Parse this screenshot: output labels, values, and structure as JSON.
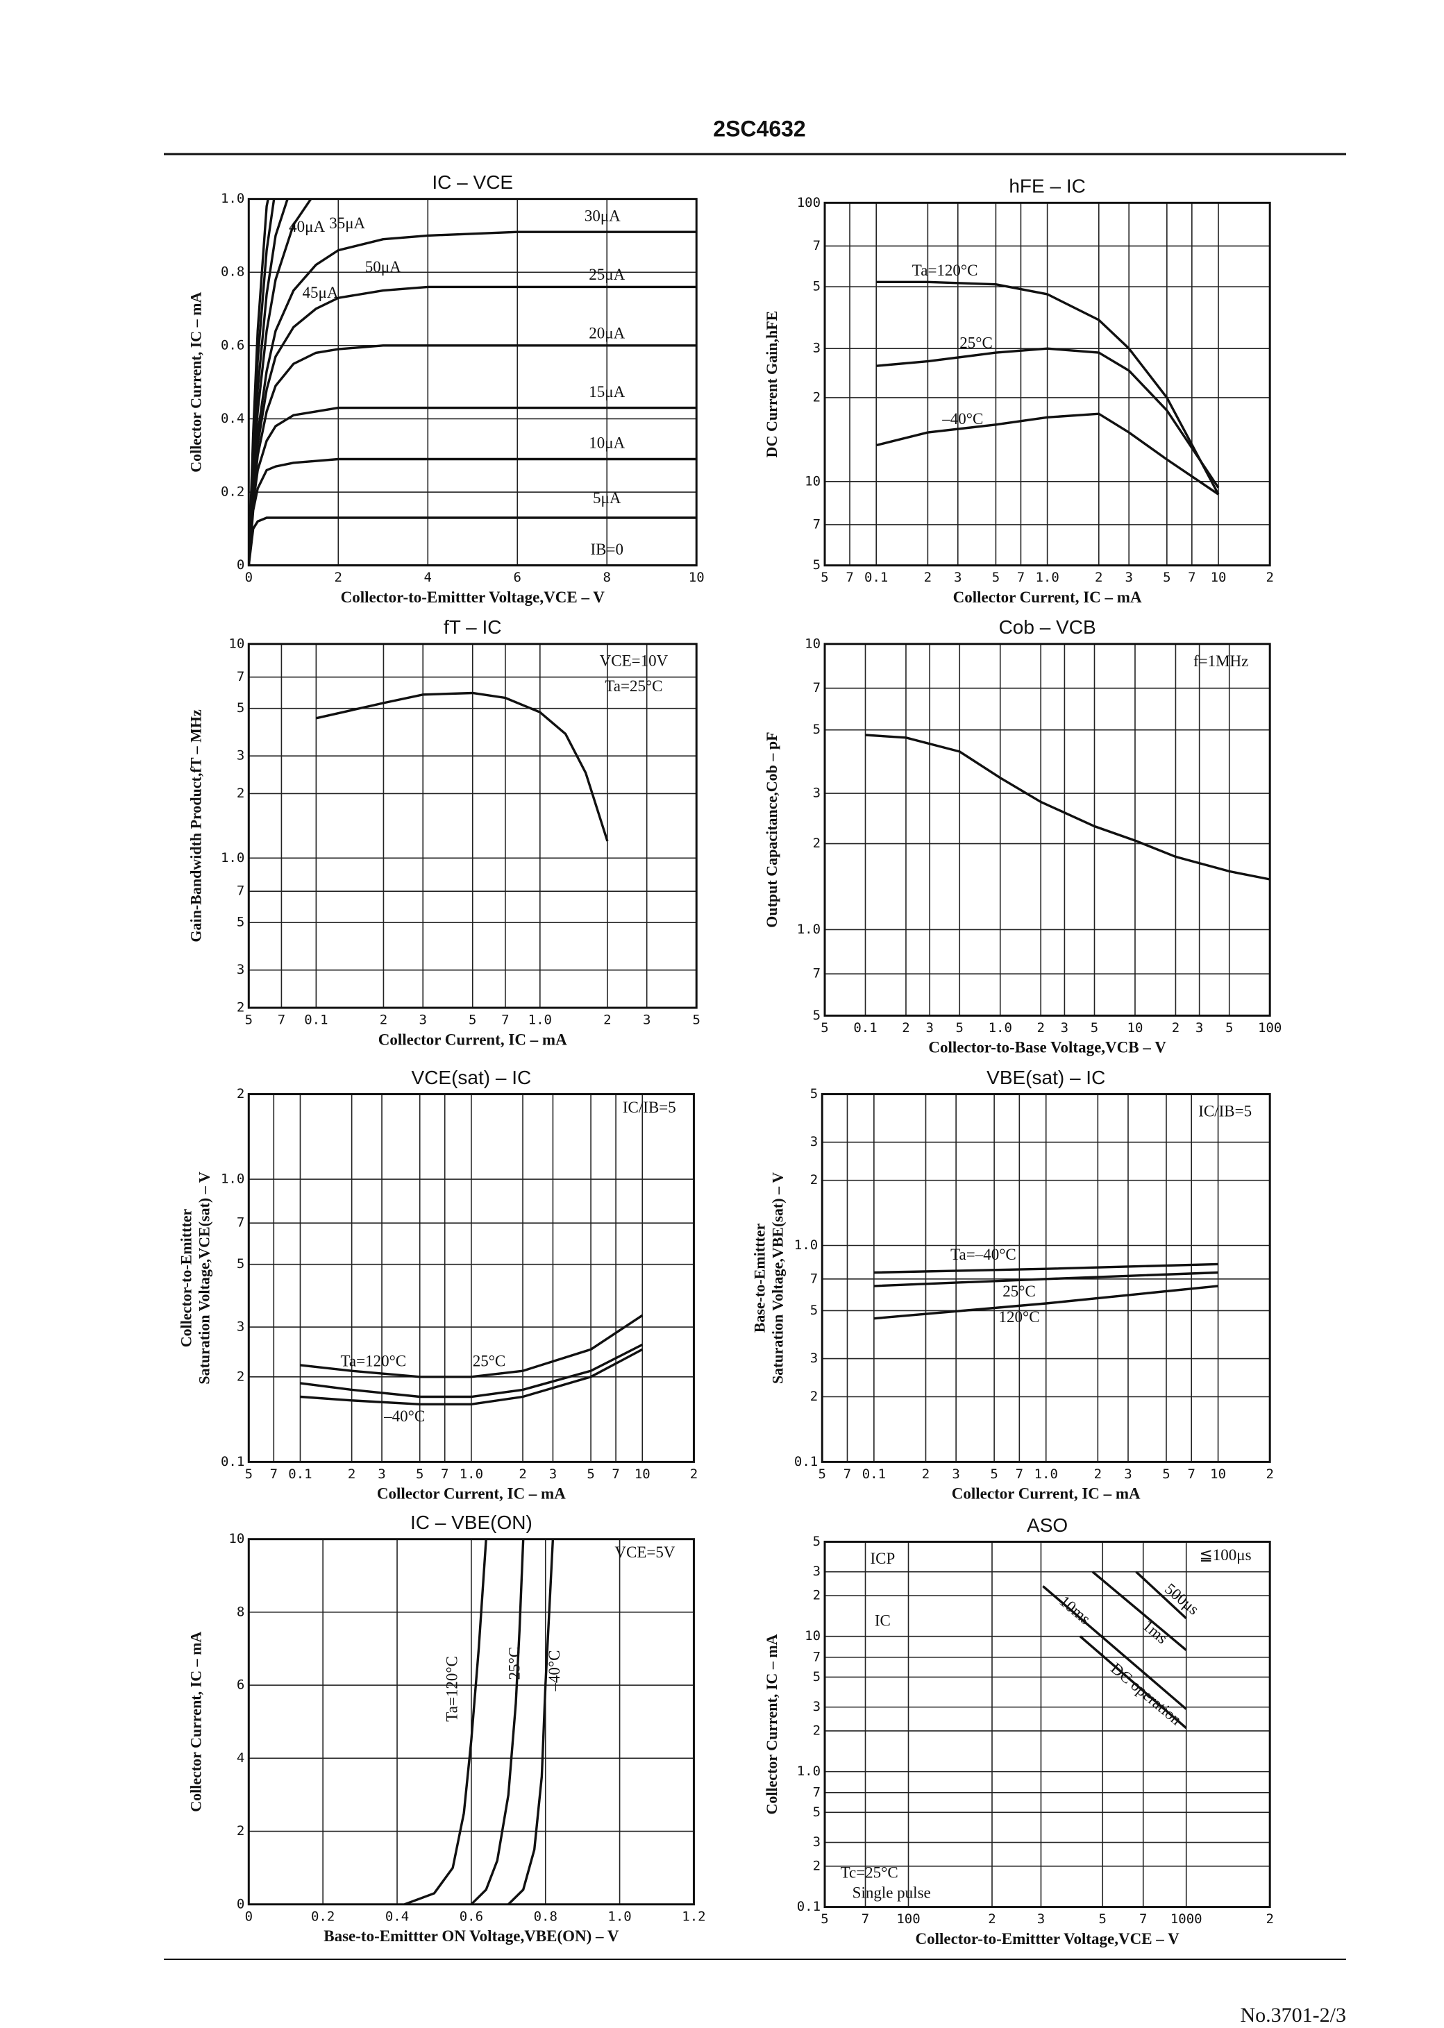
{
  "header": {
    "title": "2SC4632"
  },
  "footer": {
    "page": "No.3701-2/3"
  },
  "chart_data": [
    {
      "type": "line",
      "title": "IC  –  VCE",
      "xlabel": "Collector-to-Emittter Voltage,VCE – V",
      "ylabel": "Collector Current, IC – mA",
      "xlim": [
        0,
        10
      ],
      "ylim": [
        0,
        1
      ],
      "xticks": [
        0,
        2,
        4,
        6,
        8,
        10
      ],
      "yticks": [
        0,
        0.2,
        0.4,
        0.6,
        0.8,
        {
          "value": 1,
          "label": "1.0"
        }
      ],
      "xlog": false,
      "ylog": false,
      "grid": true,
      "color": "#111",
      "annotations": [],
      "x": [
        0,
        0.1,
        0.2,
        0.4,
        0.6,
        1,
        1.5,
        2,
        3,
        4,
        6,
        8,
        10
      ],
      "series": [
        {
          "name": "IB=0",
          "values": [
            0,
            0,
            0,
            0,
            0,
            0,
            0,
            0,
            0,
            0,
            0,
            0,
            0
          ]
        },
        {
          "name": "5μA",
          "values": [
            0,
            0.1,
            0.12,
            0.13,
            0.13,
            0.13,
            0.13,
            0.13,
            0.13,
            0.13,
            0.13,
            0.13,
            0.13
          ]
        },
        {
          "name": "10μA",
          "values": [
            0,
            0.15,
            0.21,
            0.26,
            0.27,
            0.28,
            0.285,
            0.29,
            0.29,
            0.29,
            0.29,
            0.29,
            0.29
          ]
        },
        {
          "name": "15μA",
          "values": [
            0,
            0.17,
            0.26,
            0.34,
            0.38,
            0.41,
            0.42,
            0.43,
            0.43,
            0.43,
            0.43,
            0.43,
            0.43
          ]
        },
        {
          "name": "20μA",
          "values": [
            0,
            0.18,
            0.3,
            0.42,
            0.49,
            0.55,
            0.58,
            0.59,
            0.6,
            0.6,
            0.6,
            0.6,
            0.6
          ]
        },
        {
          "name": "25μA",
          "values": [
            0,
            0.2,
            0.33,
            0.48,
            0.57,
            0.65,
            0.7,
            0.73,
            0.75,
            0.76,
            0.76,
            0.76,
            0.76
          ]
        },
        {
          "name": "30μA",
          "values": [
            0,
            0.22,
            0.36,
            0.53,
            0.64,
            0.75,
            0.82,
            0.86,
            0.89,
            0.9,
            0.91,
            0.91,
            0.91
          ]
        },
        {
          "name": "35μA",
          "values": [
            0,
            0.25,
            0.42,
            0.64,
            0.78,
            0.93,
            1.02,
            null,
            null,
            null,
            null,
            null,
            null
          ]
        },
        {
          "name": "40μA",
          "values": [
            0,
            0.28,
            0.48,
            0.74,
            0.9,
            1.05,
            null,
            null,
            null,
            null,
            null,
            null,
            null
          ]
        },
        {
          "name": "45μA",
          "values": [
            0,
            0.32,
            0.56,
            0.86,
            1.03,
            null,
            null,
            null,
            null,
            null,
            null,
            null,
            null
          ]
        },
        {
          "name": "50μA",
          "values": [
            0,
            0.36,
            0.64,
            0.98,
            1.1,
            null,
            null,
            null,
            null,
            null,
            null,
            null,
            null
          ]
        }
      ]
    },
    {
      "type": "line",
      "title": "hFE  –  IC",
      "xlabel": "Collector Current, IC – mA",
      "ylabel": "DC Current Gain,hFE",
      "xlim": [
        0.05,
        20
      ],
      "ylim": [
        5,
        100
      ],
      "xticks": [
        {
          "value": 0.05,
          "label": "5"
        },
        {
          "value": 0.07,
          "label": "7"
        },
        0.1,
        {
          "value": 0.2,
          "label": "2"
        },
        {
          "value": 0.3,
          "label": "3"
        },
        {
          "value": 0.5,
          "label": "5"
        },
        {
          "value": 0.7,
          "label": "7"
        },
        {
          "value": 1,
          "label": "1.0"
        },
        2,
        3,
        5,
        7,
        10,
        {
          "value": 20,
          "label": "2"
        }
      ],
      "yticks": [
        5,
        7,
        10,
        {
          "value": 20,
          "label": "2"
        },
        {
          "value": 30,
          "label": "3"
        },
        {
          "value": 50,
          "label": "5"
        },
        {
          "value": 70,
          "label": "7"
        },
        100
      ],
      "xlog": true,
      "ylog": true,
      "grid": true,
      "color": "#111",
      "annotations": [],
      "x": [
        0.1,
        0.2,
        0.5,
        1,
        2,
        3,
        5,
        10
      ],
      "series": [
        {
          "name": "Ta=120°C",
          "values": [
            52,
            52,
            51,
            47,
            38,
            30,
            20,
            9
          ]
        },
        {
          "name": "25°C",
          "values": [
            26,
            27,
            29,
            30,
            29,
            25,
            18,
            9.5
          ]
        },
        {
          "name": "–40°C",
          "values": [
            13.5,
            15,
            16,
            17,
            17.5,
            15,
            12,
            9
          ]
        }
      ]
    },
    {
      "type": "line",
      "title": "fT  –  IC",
      "xlabel": "Collector Current, IC – mA",
      "ylabel": "Gain-Bandwidth Product,fT – MHz",
      "xlim": [
        0.05,
        5
      ],
      "ylim": [
        0.2,
        10
      ],
      "xticks": [
        {
          "value": 0.05,
          "label": "5"
        },
        {
          "value": 0.07,
          "label": "7"
        },
        0.1,
        {
          "value": 0.2,
          "label": "2"
        },
        {
          "value": 0.3,
          "label": "3"
        },
        {
          "value": 0.5,
          "label": "5"
        },
        {
          "value": 0.7,
          "label": "7"
        },
        {
          "value": 1,
          "label": "1.0"
        },
        2,
        3,
        5
      ],
      "yticks": [
        {
          "value": 0.2,
          "label": "2"
        },
        {
          "value": 0.3,
          "label": "3"
        },
        {
          "value": 0.5,
          "label": "5"
        },
        {
          "value": 0.7,
          "label": "7"
        },
        {
          "value": 1,
          "label": "1.0"
        },
        2,
        3,
        5,
        7,
        10
      ],
      "xlog": true,
      "ylog": true,
      "grid": true,
      "color": "#111",
      "annotations": [
        "VCE=10V",
        "Ta=25°C"
      ],
      "series": [
        {
          "x": [
            0.1,
            0.2,
            0.3,
            0.5,
            0.7,
            1,
            1.3,
            1.6,
            2
          ],
          "values": [
            4.5,
            5.3,
            5.8,
            5.9,
            5.6,
            4.8,
            3.8,
            2.5,
            1.2
          ]
        }
      ]
    },
    {
      "type": "line",
      "title": "Cob  –  VCB",
      "xlabel": "Collector-to-Base Voltage,VCB – V",
      "ylabel": "Output Capacitance,Cob – pF",
      "xlim": [
        0.05,
        100
      ],
      "ylim": [
        0.5,
        10
      ],
      "xticks": [
        {
          "value": 0.05,
          "label": "5"
        },
        0.1,
        {
          "value": 0.2,
          "label": "2"
        },
        {
          "value": 0.3,
          "label": "3"
        },
        {
          "value": 0.5,
          "label": "5"
        },
        {
          "value": 1,
          "label": "1.0"
        },
        2,
        3,
        5,
        10,
        {
          "value": 20,
          "label": "2"
        },
        {
          "value": 30,
          "label": "3"
        },
        {
          "value": 50,
          "label": "5"
        },
        100
      ],
      "yticks": [
        {
          "value": 0.5,
          "label": "5"
        },
        {
          "value": 0.7,
          "label": "7"
        },
        {
          "value": 1,
          "label": "1.0"
        },
        2,
        3,
        5,
        7,
        10
      ],
      "xlog": true,
      "ylog": true,
      "grid": true,
      "color": "#111",
      "annotations": [
        "f=1MHz"
      ],
      "series": [
        {
          "x": [
            0.1,
            0.2,
            0.5,
            1,
            2,
            5,
            10,
            20,
            50,
            100
          ],
          "values": [
            4.8,
            4.7,
            4.2,
            3.4,
            2.8,
            2.3,
            2.05,
            1.8,
            1.6,
            1.5
          ]
        }
      ]
    },
    {
      "type": "line",
      "title": "VCE(sat)  –  IC",
      "xlabel": "Collector Current, IC – mA",
      "ylabel": [
        "Collector-to-Emittter",
        "Saturation Voltage,VCE(sat) – V"
      ],
      "xlim": [
        0.05,
        20
      ],
      "ylim": [
        0.1,
        2
      ],
      "xticks": [
        {
          "value": 0.05,
          "label": "5"
        },
        {
          "value": 0.07,
          "label": "7"
        },
        0.1,
        {
          "value": 0.2,
          "label": "2"
        },
        {
          "value": 0.3,
          "label": "3"
        },
        {
          "value": 0.5,
          "label": "5"
        },
        {
          "value": 0.7,
          "label": "7"
        },
        {
          "value": 1,
          "label": "1.0"
        },
        2,
        3,
        5,
        7,
        10,
        {
          "value": 20,
          "label": "2"
        }
      ],
      "yticks": [
        0.1,
        {
          "value": 0.2,
          "label": "2"
        },
        {
          "value": 0.3,
          "label": "3"
        },
        {
          "value": 0.5,
          "label": "5"
        },
        {
          "value": 0.7,
          "label": "7"
        },
        {
          "value": 1,
          "label": "1.0"
        },
        2
      ],
      "xlog": true,
      "ylog": true,
      "grid": true,
      "color": "#111",
      "annotations": [
        "IC/IB=5"
      ],
      "x": [
        0.1,
        0.2,
        0.5,
        1,
        2,
        5,
        10
      ],
      "series": [
        {
          "name": "Ta=120°C",
          "values": [
            0.22,
            0.21,
            0.2,
            0.2,
            0.21,
            0.25,
            0.33
          ]
        },
        {
          "name": "25°C",
          "values": [
            0.19,
            0.18,
            0.17,
            0.17,
            0.18,
            0.21,
            0.26
          ]
        },
        {
          "name": "–40°C",
          "values": [
            0.17,
            0.165,
            0.16,
            0.16,
            0.17,
            0.2,
            0.25
          ]
        }
      ]
    },
    {
      "type": "line",
      "title": "VBE(sat)  –  IC",
      "xlabel": "Collector Current, IC – mA",
      "ylabel": [
        "Base-to-Emittter",
        "Saturation Voltage,VBE(sat) – V"
      ],
      "xlim": [
        0.05,
        20
      ],
      "ylim": [
        0.1,
        5
      ],
      "xticks": [
        {
          "value": 0.05,
          "label": "5"
        },
        {
          "value": 0.07,
          "label": "7"
        },
        0.1,
        {
          "value": 0.2,
          "label": "2"
        },
        {
          "value": 0.3,
          "label": "3"
        },
        {
          "value": 0.5,
          "label": "5"
        },
        {
          "value": 0.7,
          "label": "7"
        },
        {
          "value": 1,
          "label": "1.0"
        },
        2,
        3,
        5,
        7,
        10,
        {
          "value": 20,
          "label": "2"
        }
      ],
      "yticks": [
        0.1,
        {
          "value": 0.2,
          "label": "2"
        },
        {
          "value": 0.3,
          "label": "3"
        },
        {
          "value": 0.5,
          "label": "5"
        },
        {
          "value": 0.7,
          "label": "7"
        },
        {
          "value": 1,
          "label": "1.0"
        },
        2,
        3,
        5
      ],
      "xlog": true,
      "ylog": true,
      "grid": true,
      "color": "#111",
      "annotations": [
        "IC/IB=5"
      ],
      "x": [
        0.1,
        1,
        10
      ],
      "series": [
        {
          "name": "Ta=–40°C",
          "values": [
            0.75,
            0.78,
            0.82
          ]
        },
        {
          "name": "25°C",
          "values": [
            0.65,
            0.7,
            0.75
          ]
        },
        {
          "name": "120°C",
          "values": [
            0.46,
            0.54,
            0.65
          ]
        }
      ]
    },
    {
      "type": "line",
      "title": "IC  –  VBE(ON)",
      "xlabel": "Base-to-Emittter ON Voltage,VBE(ON) – V",
      "ylabel": "Collector Current, IC – mA",
      "xlim": [
        0,
        1.2
      ],
      "ylim": [
        0,
        10
      ],
      "xticks": [
        0,
        0.2,
        0.4,
        0.6,
        0.8,
        {
          "value": 1,
          "label": "1.0"
        },
        1.2
      ],
      "yticks": [
        0,
        2,
        4,
        6,
        8,
        10
      ],
      "xlog": false,
      "ylog": false,
      "grid": true,
      "color": "#111",
      "annotations": [
        "VCE=5V"
      ],
      "series": [
        {
          "name": "Ta=120°C",
          "x": [
            0.42,
            0.5,
            0.55,
            0.58,
            0.6,
            0.62,
            0.64
          ],
          "values": [
            0,
            0.3,
            1,
            2.5,
            4.5,
            7,
            10
          ]
        },
        {
          "name": "25°C",
          "x": [
            0.6,
            0.64,
            0.67,
            0.7,
            0.72,
            0.73,
            0.74
          ],
          "values": [
            0,
            0.4,
            1.2,
            3,
            5.5,
            7.5,
            10
          ]
        },
        {
          "name": "–40°C",
          "x": [
            0.7,
            0.74,
            0.77,
            0.79,
            0.8,
            0.81,
            0.82
          ],
          "values": [
            0,
            0.4,
            1.5,
            3.5,
            6,
            8,
            10
          ]
        }
      ]
    },
    {
      "type": "line",
      "title": "ASO",
      "xlabel": "Collector-to-Emittter Voltage,VCE – V",
      "ylabel": "Collector Current, IC – mA",
      "xlim": [
        50,
        2000
      ],
      "ylim": [
        0.1,
        50
      ],
      "xticks": [
        {
          "value": 50,
          "label": "5"
        },
        {
          "value": 70,
          "label": "7"
        },
        100,
        {
          "value": 200,
          "label": "2"
        },
        {
          "value": 300,
          "label": "3"
        },
        {
          "value": 500,
          "label": "5"
        },
        {
          "value": 700,
          "label": "7"
        },
        1000,
        {
          "value": 2000,
          "label": "2"
        }
      ],
      "yticks": [
        0.1,
        {
          "value": 0.2,
          "label": "2"
        },
        {
          "value": 0.3,
          "label": "3"
        },
        {
          "value": 0.5,
          "label": "5"
        },
        {
          "value": 0.7,
          "label": "7"
        },
        {
          "value": 1,
          "label": "1.0"
        },
        2,
        3,
        5,
        7,
        10,
        {
          "value": 20,
          "label": "2"
        },
        {
          "value": 30,
          "label": "3"
        },
        {
          "value": 50,
          "label": "5"
        }
      ],
      "xlog": true,
      "ylog": true,
      "grid": true,
      "color": "#111",
      "annotations": [
        "ICP",
        "IC",
        "≦100μs",
        "Tc=25°C",
        "Single pulse"
      ],
      "series": [
        {
          "name": "10ms",
          "x": [
            305,
            1000
          ],
          "values": [
            23.5,
            2.9
          ]
        },
        {
          "name": "1ms",
          "x": [
            460,
            1000
          ],
          "values": [
            30,
            7.9
          ]
        },
        {
          "name": "500μs",
          "x": [
            660,
            1000
          ],
          "values": [
            30,
            13.6
          ]
        },
        {
          "name": "DC operation",
          "x": [
            415,
            1000
          ],
          "values": [
            10,
            2.1
          ]
        }
      ]
    }
  ]
}
